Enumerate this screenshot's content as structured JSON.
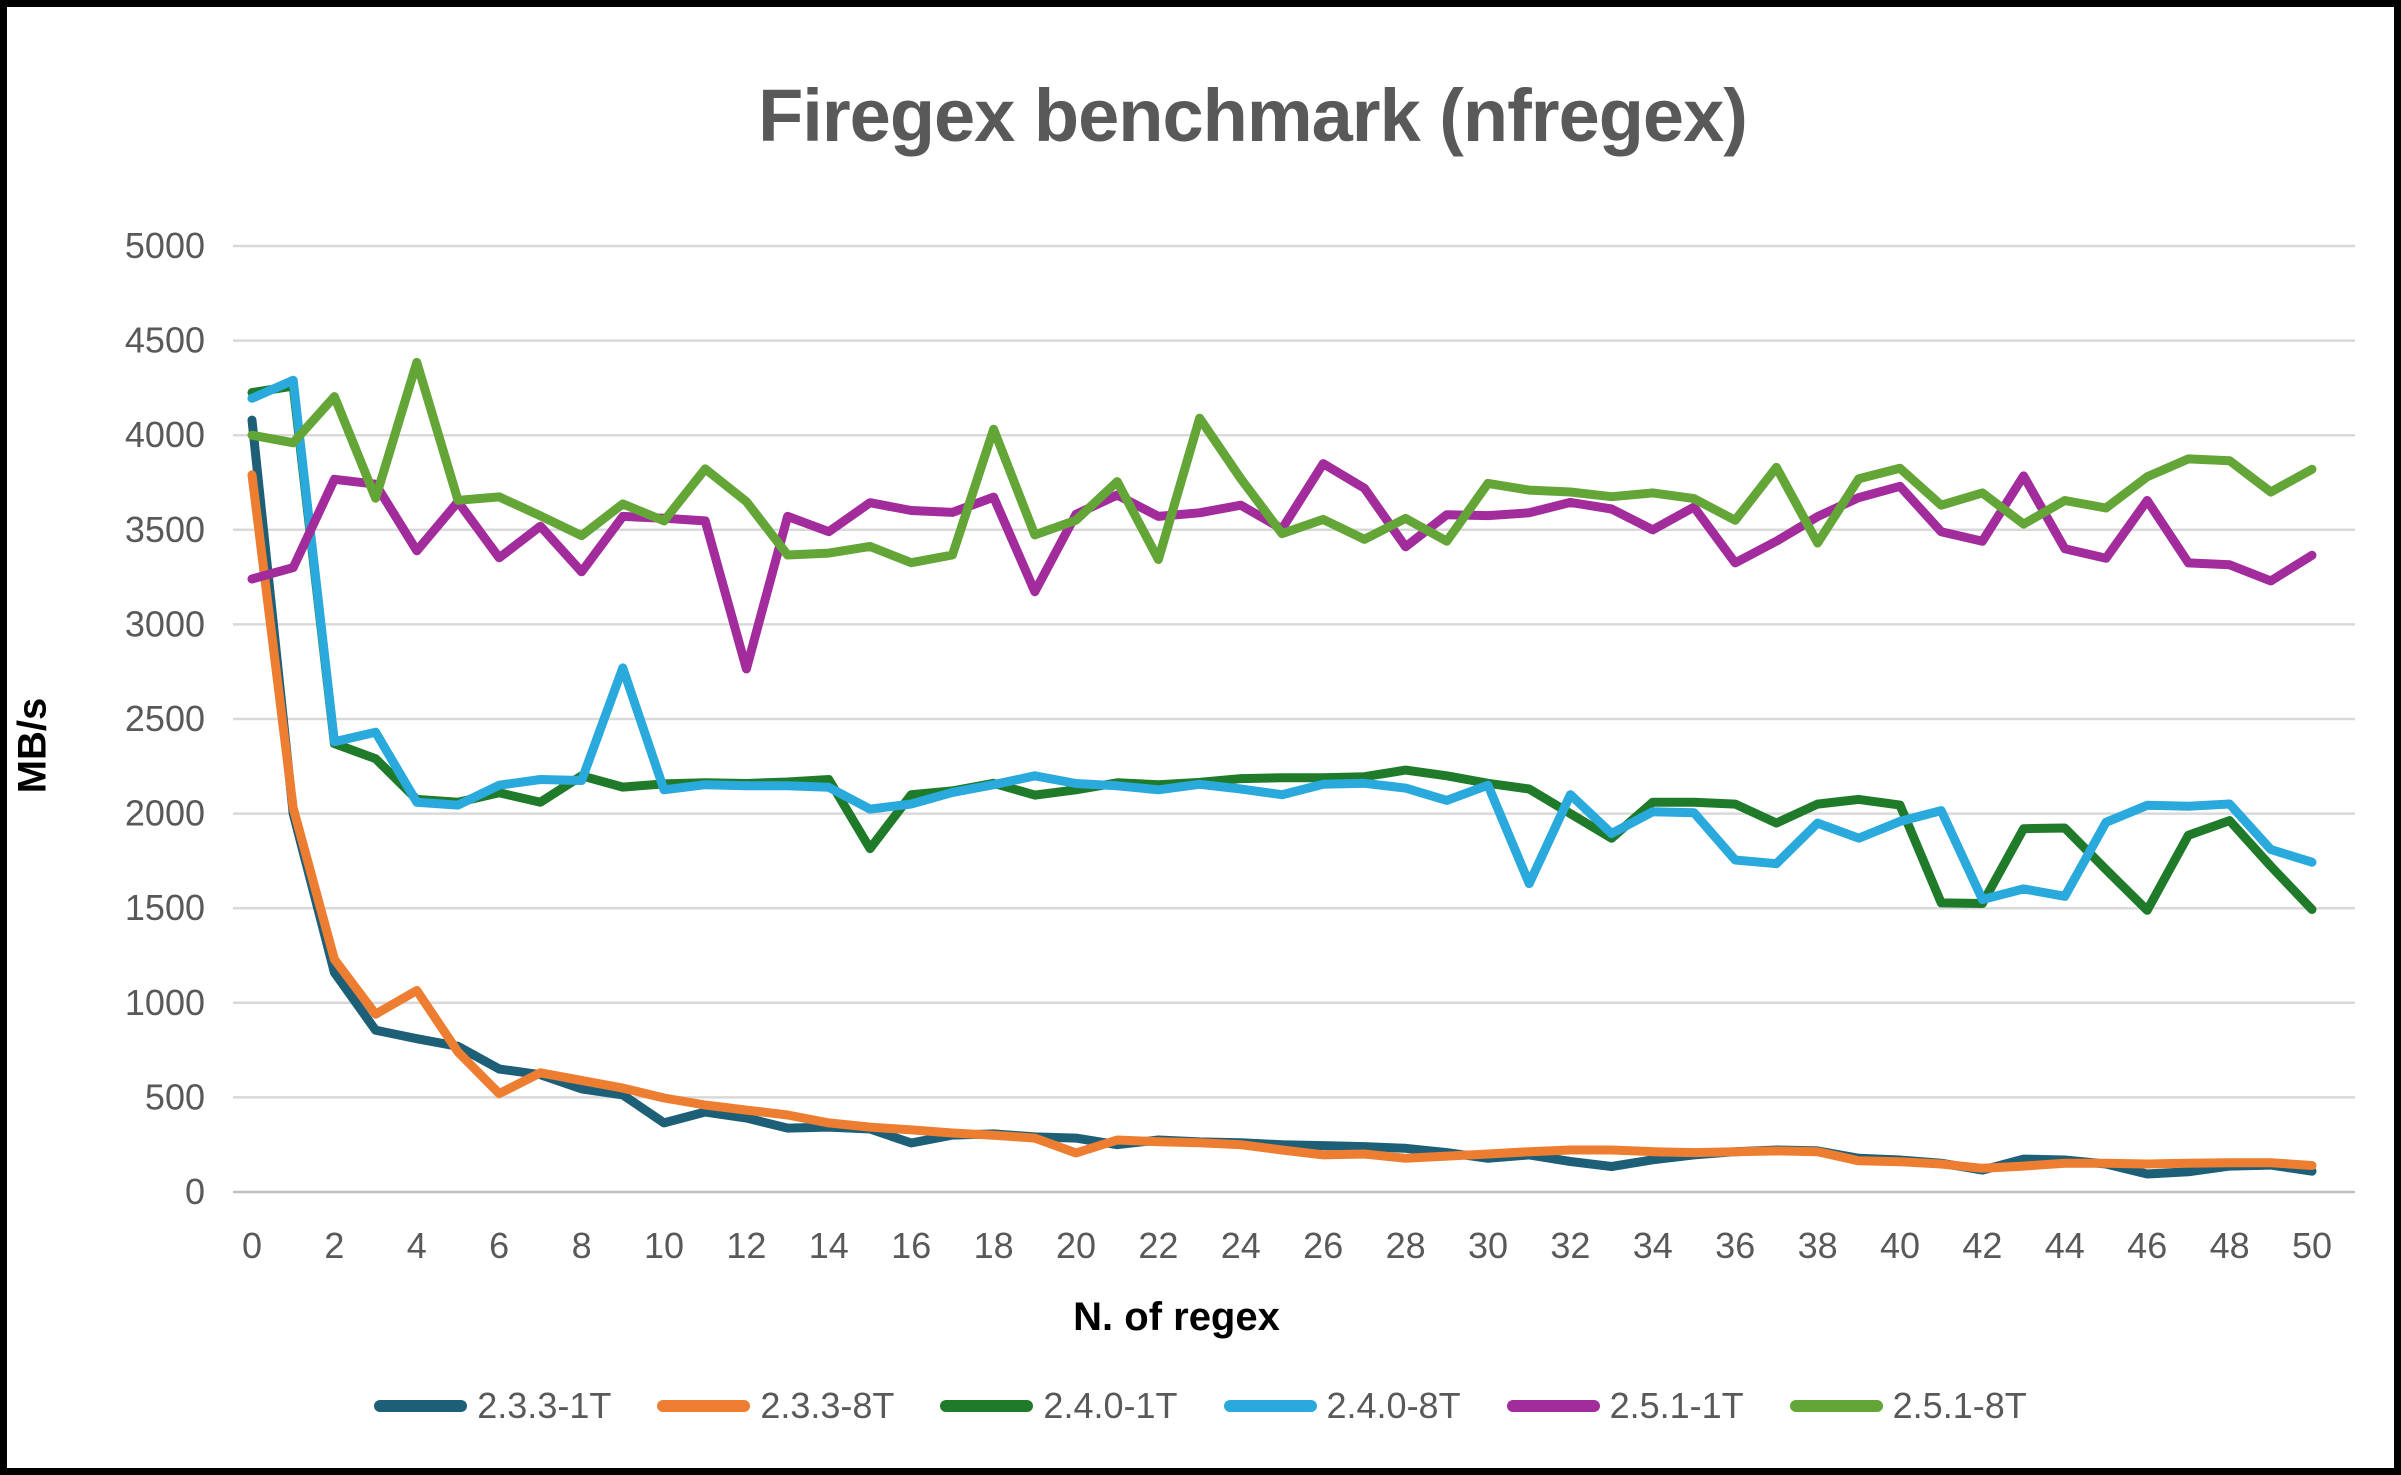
{
  "chart_data": {
    "type": "line",
    "title": "Firegex benchmark (nfregex)",
    "xlabel": "N. of regex",
    "ylabel": "MB/s",
    "ylim": [
      0,
      5000
    ],
    "xlim": [
      0,
      50
    ],
    "yticks": [
      0,
      500,
      1000,
      1500,
      2000,
      2500,
      3000,
      3500,
      4000,
      4500,
      5000
    ],
    "xticks": [
      0,
      2,
      4,
      6,
      8,
      10,
      12,
      14,
      16,
      18,
      20,
      22,
      24,
      26,
      28,
      30,
      32,
      34,
      36,
      38,
      40,
      42,
      44,
      46,
      48,
      50
    ],
    "grid": "horizontal",
    "legend_position": "bottom",
    "x": [
      0,
      1,
      2,
      3,
      4,
      5,
      6,
      7,
      8,
      9,
      10,
      11,
      12,
      13,
      14,
      15,
      16,
      17,
      18,
      19,
      20,
      21,
      22,
      23,
      24,
      25,
      26,
      27,
      28,
      29,
      30,
      31,
      32,
      33,
      34,
      35,
      36,
      37,
      38,
      39,
      40,
      41,
      42,
      43,
      44,
      45,
      46,
      47,
      48,
      49,
      50
    ],
    "series": [
      {
        "name": "2.3.3-1T",
        "color": "#1E5F78",
        "values": [
          4080,
          2000,
          1160,
          855,
          810,
          770,
          650,
          620,
          545,
          513,
          365,
          423,
          391,
          338,
          343,
          333,
          259,
          301,
          307,
          291,
          285,
          250,
          275,
          265,
          260,
          250,
          245,
          240,
          231,
          208,
          178,
          196,
          161,
          135,
          170,
          196,
          213,
          222,
          217,
          178,
          169,
          152,
          116,
          174,
          169,
          148,
          95,
          107,
          137,
          142,
          110
        ]
      },
      {
        "name": "2.3.3-8T",
        "color": "#ED7D31",
        "values": [
          3790,
          2030,
          1230,
          940,
          1065,
          740,
          520,
          630,
          590,
          549,
          497,
          460,
          433,
          407,
          365,
          343,
          328,
          312,
          300,
          285,
          206,
          275,
          266,
          260,
          250,
          222,
          196,
          201,
          178,
          190,
          201,
          213,
          222,
          222,
          213,
          208,
          213,
          217,
          213,
          165,
          160,
          148,
          125,
          137,
          152,
          152,
          148,
          152,
          155,
          155,
          140
        ]
      },
      {
        "name": "2.4.0-1T",
        "color": "#1F7B2A",
        "values": [
          4225,
          4260,
          2370,
          2290,
          2075,
          2060,
          2110,
          2060,
          2200,
          2140,
          2157,
          2163,
          2159,
          2167,
          2180,
          1815,
          2100,
          2120,
          2160,
          2098,
          2126,
          2163,
          2153,
          2165,
          2185,
          2190,
          2190,
          2195,
          2230,
          2200,
          2160,
          2130,
          2000,
          1870,
          2060,
          2060,
          2050,
          1950,
          2050,
          2075,
          2045,
          1528,
          1525,
          1920,
          1924,
          1704,
          1489,
          1886,
          1963,
          1722,
          1493
        ]
      },
      {
        "name": "2.4.0-8T",
        "color": "#29A9DC",
        "values": [
          4195,
          4290,
          2380,
          2430,
          2060,
          2045,
          2150,
          2180,
          2175,
          2770,
          2126,
          2153,
          2147,
          2147,
          2139,
          2024,
          2051,
          2112,
          2153,
          2200,
          2159,
          2147,
          2126,
          2155,
          2130,
          2100,
          2155,
          2160,
          2135,
          2070,
          2150,
          1630,
          2100,
          1895,
          2010,
          2005,
          1755,
          1735,
          1950,
          1870,
          1959,
          2016,
          1546,
          1602,
          1563,
          1954,
          2044,
          2039,
          2051,
          1810,
          1743
        ]
      },
      {
        "name": "2.5.1-1T",
        "color": "#A22C9C",
        "values": [
          3240,
          3300,
          3767,
          3741,
          3389,
          3648,
          3352,
          3519,
          3278,
          3571,
          3561,
          3547,
          2765,
          3571,
          3490,
          3643,
          3602,
          3592,
          3673,
          3173,
          3582,
          3684,
          3571,
          3590,
          3630,
          3505,
          3850,
          3720,
          3410,
          3580,
          3575,
          3590,
          3645,
          3610,
          3500,
          3620,
          3325,
          3440,
          3570,
          3670,
          3730,
          3490,
          3440,
          3785,
          3400,
          3350,
          3655,
          3325,
          3315,
          3230,
          3365
        ]
      },
      {
        "name": "2.5.1-8T",
        "color": "#63A537",
        "values": [
          4000,
          3960,
          4204,
          3667,
          4385,
          3656,
          3674,
          3574,
          3469,
          3637,
          3547,
          3822,
          3649,
          3367,
          3377,
          3412,
          3326,
          3367,
          4031,
          3473,
          3551,
          3755,
          3343,
          4090,
          3770,
          3480,
          3555,
          3450,
          3560,
          3440,
          3745,
          3710,
          3700,
          3675,
          3695,
          3665,
          3550,
          3830,
          3430,
          3770,
          3825,
          3630,
          3695,
          3530,
          3655,
          3615,
          3780,
          3875,
          3865,
          3700,
          3820
        ]
      }
    ]
  },
  "styles": {
    "title_color": "#595959",
    "axis_title_color": "#000000",
    "tick_label_color": "#595959",
    "gridline_color": "#D9D9D9",
    "axis_line_color": "#BFBFBF",
    "background": "#FFFFFF",
    "frame_color": "#000000"
  }
}
